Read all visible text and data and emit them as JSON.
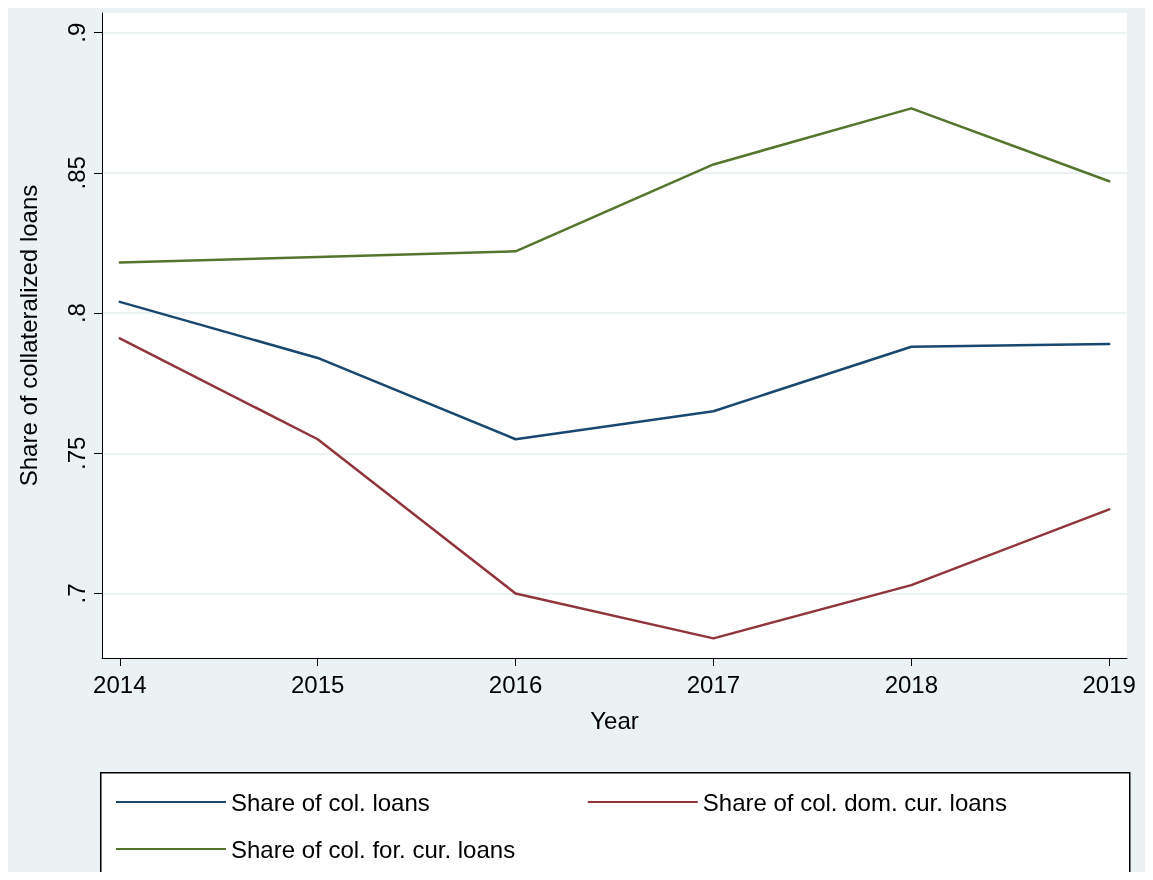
{
  "chart_data": {
    "type": "line",
    "xlabel": "Year",
    "ylabel": "Share of collateralized loans",
    "x": [
      2014,
      2015,
      2016,
      2017,
      2018,
      2019
    ],
    "series": [
      {
        "name": "Share of col. loans",
        "color": "#1a476f",
        "values": [
          0.804,
          0.784,
          0.755,
          0.765,
          0.788,
          0.789
        ]
      },
      {
        "name": "Share of col. dom. cur. loans",
        "color": "#90353b",
        "values": [
          0.791,
          0.755,
          0.7,
          0.684,
          0.703,
          0.73
        ]
      },
      {
        "name": "Share of col. for. cur. loans",
        "color": "#55752f",
        "values": [
          0.818,
          0.82,
          0.822,
          0.853,
          0.873,
          0.847
        ]
      }
    ],
    "xlim": [
      2013.91,
      2019.09
    ],
    "xticks": [
      2014,
      2015,
      2016,
      2017,
      2018,
      2019
    ],
    "ylim": [
      0.677,
      0.907
    ],
    "yticks": [
      {
        "value": 0.7,
        "label": ".7"
      },
      {
        "value": 0.75,
        "label": ".75"
      },
      {
        "value": 0.8,
        "label": ".8"
      },
      {
        "value": 0.85,
        "label": ".85"
      },
      {
        "value": 0.9,
        "label": ".9"
      }
    ],
    "grid": "y",
    "legend": "bottom",
    "marker": "none",
    "line_style": "solid"
  }
}
